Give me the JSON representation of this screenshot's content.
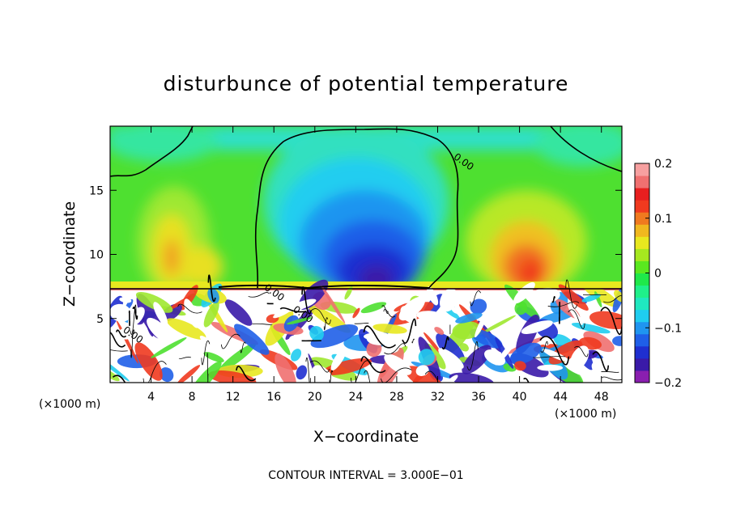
{
  "chart_data": {
    "type": "heatmap",
    "title": "disturbunce of potential temperature",
    "xlabel": "X−coordinate",
    "ylabel": "Z−coordinate",
    "x_unit_left": "(×1000 m)",
    "x_unit_right": "(×1000 m)",
    "xlim": [
      0,
      50
    ],
    "ylim": [
      0,
      20
    ],
    "xticks": [
      {
        "value": 4,
        "label": "4"
      },
      {
        "value": 8,
        "label": "8"
      },
      {
        "value": 12,
        "label": "12"
      },
      {
        "value": 16,
        "label": "16"
      },
      {
        "value": 20,
        "label": "20"
      },
      {
        "value": 24,
        "label": "24"
      },
      {
        "value": 28,
        "label": "28"
      },
      {
        "value": 32,
        "label": "32"
      },
      {
        "value": 36,
        "label": "36"
      },
      {
        "value": 40,
        "label": "40"
      },
      {
        "value": 44,
        "label": "44"
      },
      {
        "value": 48,
        "label": "48"
      }
    ],
    "yticks": [
      {
        "value": 5,
        "label": "5"
      },
      {
        "value": 10,
        "label": "10"
      },
      {
        "value": 15,
        "label": "15"
      }
    ],
    "colorbar": {
      "range": [
        -0.2,
        0.2
      ],
      "ticks": [
        {
          "value": 0.2,
          "label": "0.2"
        },
        {
          "value": 0.1,
          "label": "0.1"
        },
        {
          "value": 0,
          "label": "0"
        },
        {
          "value": -0.1,
          "label": "−0.1"
        },
        {
          "value": -0.2,
          "label": "−0.2"
        }
      ],
      "colors": [
        "#8a1fb0",
        "#3a1aa8",
        "#1f2fd0",
        "#1f5fe8",
        "#1f95f0",
        "#1fcdf0",
        "#1fe8c0",
        "#1ff08a",
        "#1fe84a",
        "#5ae81f",
        "#a6e81f",
        "#e8e81f",
        "#f0b81f",
        "#f07a1f",
        "#f03a1f",
        "#e81f1f",
        "#f07070",
        "#f7a0a0"
      ]
    },
    "contour_labels": [
      {
        "text": "0.00",
        "x": 33.5,
        "z": 17.5
      },
      {
        "text": "0.00",
        "x": 15.0,
        "z": 7.3
      },
      {
        "text": "0.00",
        "x": 17.8,
        "z": 5.6
      },
      {
        "text": "0.00",
        "x": 1.2,
        "z": 4.0
      }
    ],
    "annotation": "CONTOUR INTERVAL = 3.000E−01"
  }
}
